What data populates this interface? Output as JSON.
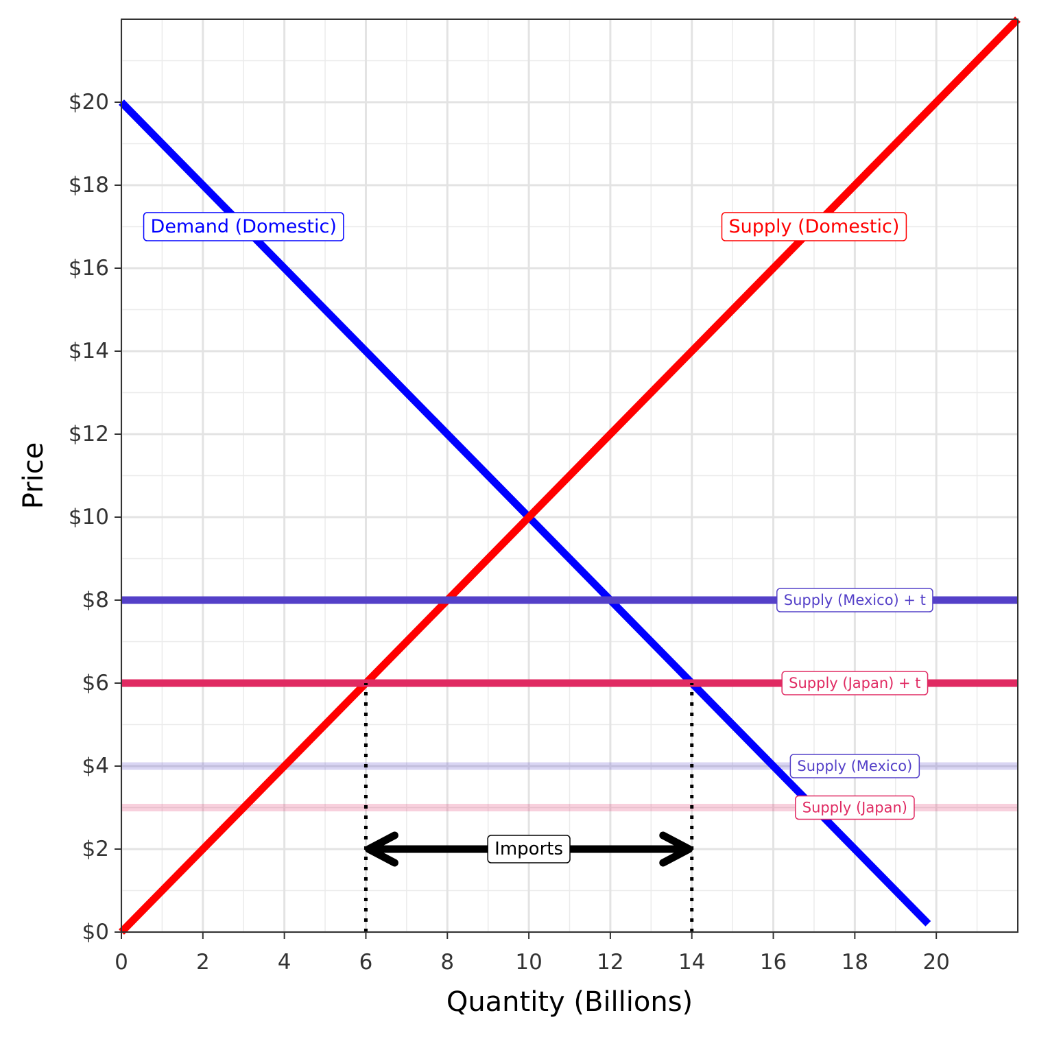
{
  "chart_data": {
    "type": "line",
    "xlabel": "Quantity (Billions)",
    "ylabel": "Price",
    "xlim": [
      0,
      22
    ],
    "ylim": [
      0,
      22
    ],
    "x_ticks": [
      0,
      2,
      4,
      6,
      8,
      10,
      12,
      14,
      16,
      18,
      20
    ],
    "y_ticks": [
      0,
      2,
      4,
      6,
      8,
      10,
      12,
      14,
      16,
      18,
      20
    ],
    "x_tick_labels": [
      "0",
      "2",
      "4",
      "6",
      "8",
      "10",
      "12",
      "14",
      "16",
      "18",
      "20"
    ],
    "y_tick_labels": [
      "$0",
      "$2",
      "$4",
      "$6",
      "$8",
      "$10",
      "$12",
      "$14",
      "$16",
      "$18",
      "$20"
    ],
    "grid": true,
    "series": [
      {
        "name": "Demand (Domestic)",
        "color": "#0000ff",
        "points": [
          [
            0,
            20
          ],
          [
            19.8,
            0.2
          ]
        ],
        "label_at": [
          3,
          17
        ]
      },
      {
        "name": "Supply (Domestic)",
        "color": "#ff0000",
        "points": [
          [
            0,
            0
          ],
          [
            22,
            22
          ]
        ],
        "label_at": [
          17,
          17
        ]
      },
      {
        "name": "Supply (Mexico) + t",
        "color": "#5440c8",
        "points": [
          [
            0,
            8
          ],
          [
            22,
            8
          ]
        ],
        "label_at": [
          18,
          8
        ]
      },
      {
        "name": "Supply (Japan) + t",
        "color": "#e02a62",
        "points": [
          [
            0,
            6
          ],
          [
            22,
            6
          ]
        ],
        "label_at": [
          18,
          6
        ]
      },
      {
        "name": "Supply (Mexico)",
        "color": "#5440c8",
        "faded": true,
        "points": [
          [
            0,
            4
          ],
          [
            22,
            4
          ]
        ],
        "label_at": [
          18,
          4
        ]
      },
      {
        "name": "Supply (Japan)",
        "color": "#e02a62",
        "faded": true,
        "points": [
          [
            0,
            3
          ],
          [
            22,
            3
          ]
        ],
        "label_at": [
          18,
          3
        ]
      }
    ],
    "annotations": {
      "imports_label": "Imports",
      "arrow": {
        "x_from": 6,
        "x_to": 14,
        "y": 2
      },
      "dotted_lines": [
        {
          "x": 6,
          "y_from": 0,
          "y_to": 6
        },
        {
          "x": 14,
          "y_from": 0,
          "y_to": 6
        }
      ]
    }
  }
}
